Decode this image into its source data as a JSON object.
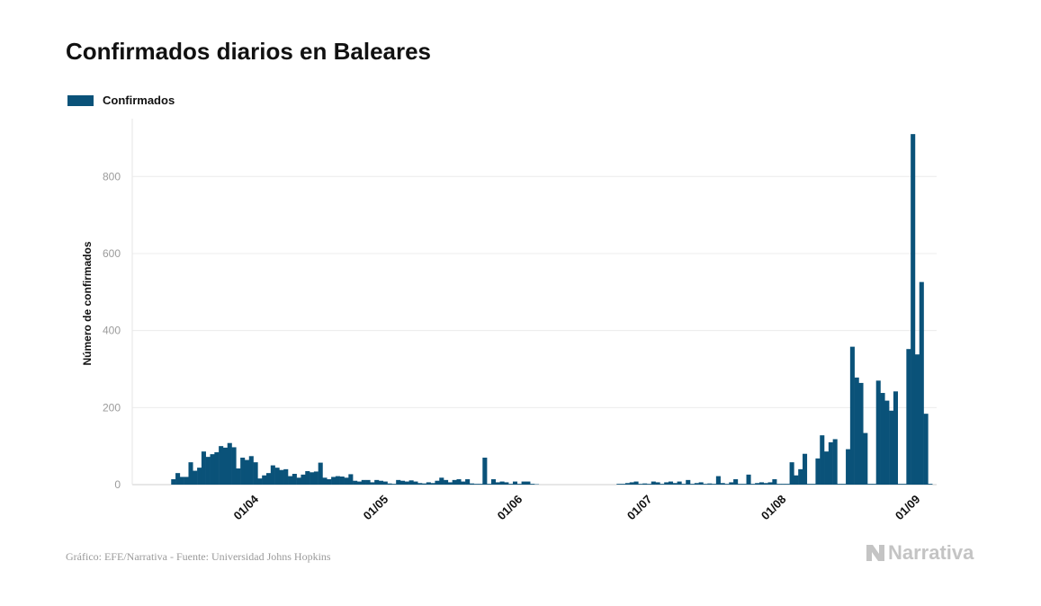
{
  "title": "Confirmados diarios en Baleares",
  "legend": {
    "label": "Confirmados",
    "color": "#0a5279"
  },
  "footer": "Gráfico: EFE/Narrativa - Fuente: Universidad Johns Hopkins",
  "brand": {
    "name": "Narrativa",
    "icon": "narrativa-logo-icon"
  },
  "chart_data": {
    "type": "bar",
    "title": "Confirmados diarios en Baleares",
    "ylabel": "Número de confirmados",
    "xlabel": "",
    "ylim": [
      0,
      950
    ],
    "yticks": [
      0,
      200,
      400,
      600,
      800
    ],
    "xlim": [
      "2020-03-04",
      "2020-09-06"
    ],
    "xticks": [
      {
        "date": "2020-04-01",
        "label": "01/04"
      },
      {
        "date": "2020-05-01",
        "label": "01/05"
      },
      {
        "date": "2020-06-01",
        "label": "01/06"
      },
      {
        "date": "2020-07-01",
        "label": "01/07"
      },
      {
        "date": "2020-08-01",
        "label": "01/08"
      },
      {
        "date": "2020-09-01",
        "label": "01/09"
      }
    ],
    "grid": true,
    "legend_position": "top-left",
    "series": [
      {
        "name": "Confirmados",
        "color": "#0a5279",
        "points": [
          [
            "2020-03-13",
            14
          ],
          [
            "2020-03-14",
            30
          ],
          [
            "2020-03-15",
            20
          ],
          [
            "2020-03-16",
            20
          ],
          [
            "2020-03-17",
            58
          ],
          [
            "2020-03-18",
            36
          ],
          [
            "2020-03-19",
            44
          ],
          [
            "2020-03-20",
            86
          ],
          [
            "2020-03-21",
            72
          ],
          [
            "2020-03-22",
            79
          ],
          [
            "2020-03-23",
            84
          ],
          [
            "2020-03-24",
            100
          ],
          [
            "2020-03-25",
            96
          ],
          [
            "2020-03-26",
            108
          ],
          [
            "2020-03-27",
            97
          ],
          [
            "2020-03-28",
            42
          ],
          [
            "2020-03-29",
            70
          ],
          [
            "2020-03-30",
            64
          ],
          [
            "2020-03-31",
            74
          ],
          [
            "2020-04-01",
            58
          ],
          [
            "2020-04-02",
            16
          ],
          [
            "2020-04-03",
            24
          ],
          [
            "2020-04-04",
            30
          ],
          [
            "2020-04-05",
            50
          ],
          [
            "2020-04-06",
            44
          ],
          [
            "2020-04-07",
            38
          ],
          [
            "2020-04-08",
            40
          ],
          [
            "2020-04-09",
            22
          ],
          [
            "2020-04-10",
            28
          ],
          [
            "2020-04-11",
            18
          ],
          [
            "2020-04-12",
            26
          ],
          [
            "2020-04-13",
            35
          ],
          [
            "2020-04-14",
            32
          ],
          [
            "2020-04-15",
            34
          ],
          [
            "2020-04-16",
            57
          ],
          [
            "2020-04-17",
            18
          ],
          [
            "2020-04-18",
            14
          ],
          [
            "2020-04-19",
            20
          ],
          [
            "2020-04-20",
            22
          ],
          [
            "2020-04-21",
            21
          ],
          [
            "2020-04-22",
            18
          ],
          [
            "2020-04-23",
            27
          ],
          [
            "2020-04-24",
            10
          ],
          [
            "2020-04-25",
            8
          ],
          [
            "2020-04-26",
            12
          ],
          [
            "2020-04-27",
            12
          ],
          [
            "2020-04-28",
            6
          ],
          [
            "2020-04-29",
            12
          ],
          [
            "2020-04-30",
            10
          ],
          [
            "2020-05-01",
            8
          ],
          [
            "2020-05-02",
            3
          ],
          [
            "2020-05-03",
            2
          ],
          [
            "2020-05-04",
            12
          ],
          [
            "2020-05-05",
            10
          ],
          [
            "2020-05-06",
            8
          ],
          [
            "2020-05-07",
            11
          ],
          [
            "2020-05-08",
            8
          ],
          [
            "2020-05-09",
            4
          ],
          [
            "2020-05-10",
            3
          ],
          [
            "2020-05-11",
            6
          ],
          [
            "2020-05-12",
            4
          ],
          [
            "2020-05-13",
            10
          ],
          [
            "2020-05-14",
            18
          ],
          [
            "2020-05-15",
            12
          ],
          [
            "2020-05-16",
            6
          ],
          [
            "2020-05-17",
            12
          ],
          [
            "2020-05-18",
            14
          ],
          [
            "2020-05-19",
            8
          ],
          [
            "2020-05-20",
            14
          ],
          [
            "2020-05-21",
            3
          ],
          [
            "2020-05-22",
            2
          ],
          [
            "2020-05-23",
            2
          ],
          [
            "2020-05-24",
            70
          ],
          [
            "2020-05-25",
            2
          ],
          [
            "2020-05-26",
            14
          ],
          [
            "2020-05-27",
            6
          ],
          [
            "2020-05-28",
            8
          ],
          [
            "2020-05-29",
            6
          ],
          [
            "2020-05-30",
            2
          ],
          [
            "2020-05-31",
            8
          ],
          [
            "2020-06-01",
            2
          ],
          [
            "2020-06-02",
            8
          ],
          [
            "2020-06-03",
            8
          ],
          [
            "2020-06-04",
            2
          ],
          [
            "2020-06-05",
            1
          ],
          [
            "2020-06-24",
            2
          ],
          [
            "2020-06-25",
            2
          ],
          [
            "2020-06-26",
            4
          ],
          [
            "2020-06-27",
            6
          ],
          [
            "2020-06-28",
            8
          ],
          [
            "2020-06-29",
            2
          ],
          [
            "2020-06-30",
            3
          ],
          [
            "2020-07-01",
            2
          ],
          [
            "2020-07-02",
            8
          ],
          [
            "2020-07-03",
            6
          ],
          [
            "2020-07-04",
            2
          ],
          [
            "2020-07-05",
            6
          ],
          [
            "2020-07-06",
            8
          ],
          [
            "2020-07-07",
            4
          ],
          [
            "2020-07-08",
            8
          ],
          [
            "2020-07-09",
            2
          ],
          [
            "2020-07-10",
            12
          ],
          [
            "2020-07-11",
            2
          ],
          [
            "2020-07-12",
            4
          ],
          [
            "2020-07-13",
            6
          ],
          [
            "2020-07-14",
            2
          ],
          [
            "2020-07-15",
            3
          ],
          [
            "2020-07-16",
            2
          ],
          [
            "2020-07-17",
            22
          ],
          [
            "2020-07-18",
            4
          ],
          [
            "2020-07-19",
            2
          ],
          [
            "2020-07-20",
            6
          ],
          [
            "2020-07-21",
            14
          ],
          [
            "2020-07-22",
            2
          ],
          [
            "2020-07-23",
            2
          ],
          [
            "2020-07-24",
            26
          ],
          [
            "2020-07-25",
            2
          ],
          [
            "2020-07-26",
            4
          ],
          [
            "2020-07-27",
            6
          ],
          [
            "2020-07-28",
            4
          ],
          [
            "2020-07-29",
            6
          ],
          [
            "2020-07-30",
            14
          ],
          [
            "2020-07-31",
            2
          ],
          [
            "2020-08-01",
            2
          ],
          [
            "2020-08-02",
            2
          ],
          [
            "2020-08-03",
            58
          ],
          [
            "2020-08-04",
            24
          ],
          [
            "2020-08-05",
            40
          ],
          [
            "2020-08-06",
            80
          ],
          [
            "2020-08-07",
            2
          ],
          [
            "2020-08-08",
            2
          ],
          [
            "2020-08-09",
            68
          ],
          [
            "2020-08-10",
            128
          ],
          [
            "2020-08-11",
            86
          ],
          [
            "2020-08-12",
            110
          ],
          [
            "2020-08-13",
            118
          ],
          [
            "2020-08-14",
            2
          ],
          [
            "2020-08-15",
            2
          ],
          [
            "2020-08-16",
            92
          ],
          [
            "2020-08-17",
            358
          ],
          [
            "2020-08-18",
            278
          ],
          [
            "2020-08-19",
            264
          ],
          [
            "2020-08-20",
            134
          ],
          [
            "2020-08-21",
            2
          ],
          [
            "2020-08-22",
            2
          ],
          [
            "2020-08-23",
            270
          ],
          [
            "2020-08-24",
            238
          ],
          [
            "2020-08-25",
            218
          ],
          [
            "2020-08-26",
            192
          ],
          [
            "2020-08-27",
            242
          ],
          [
            "2020-08-28",
            2
          ],
          [
            "2020-08-29",
            2
          ],
          [
            "2020-08-30",
            352
          ],
          [
            "2020-08-31",
            910
          ],
          [
            "2020-09-01",
            338
          ],
          [
            "2020-09-02",
            526
          ],
          [
            "2020-09-03",
            184
          ],
          [
            "2020-09-04",
            2
          ]
        ]
      }
    ]
  }
}
